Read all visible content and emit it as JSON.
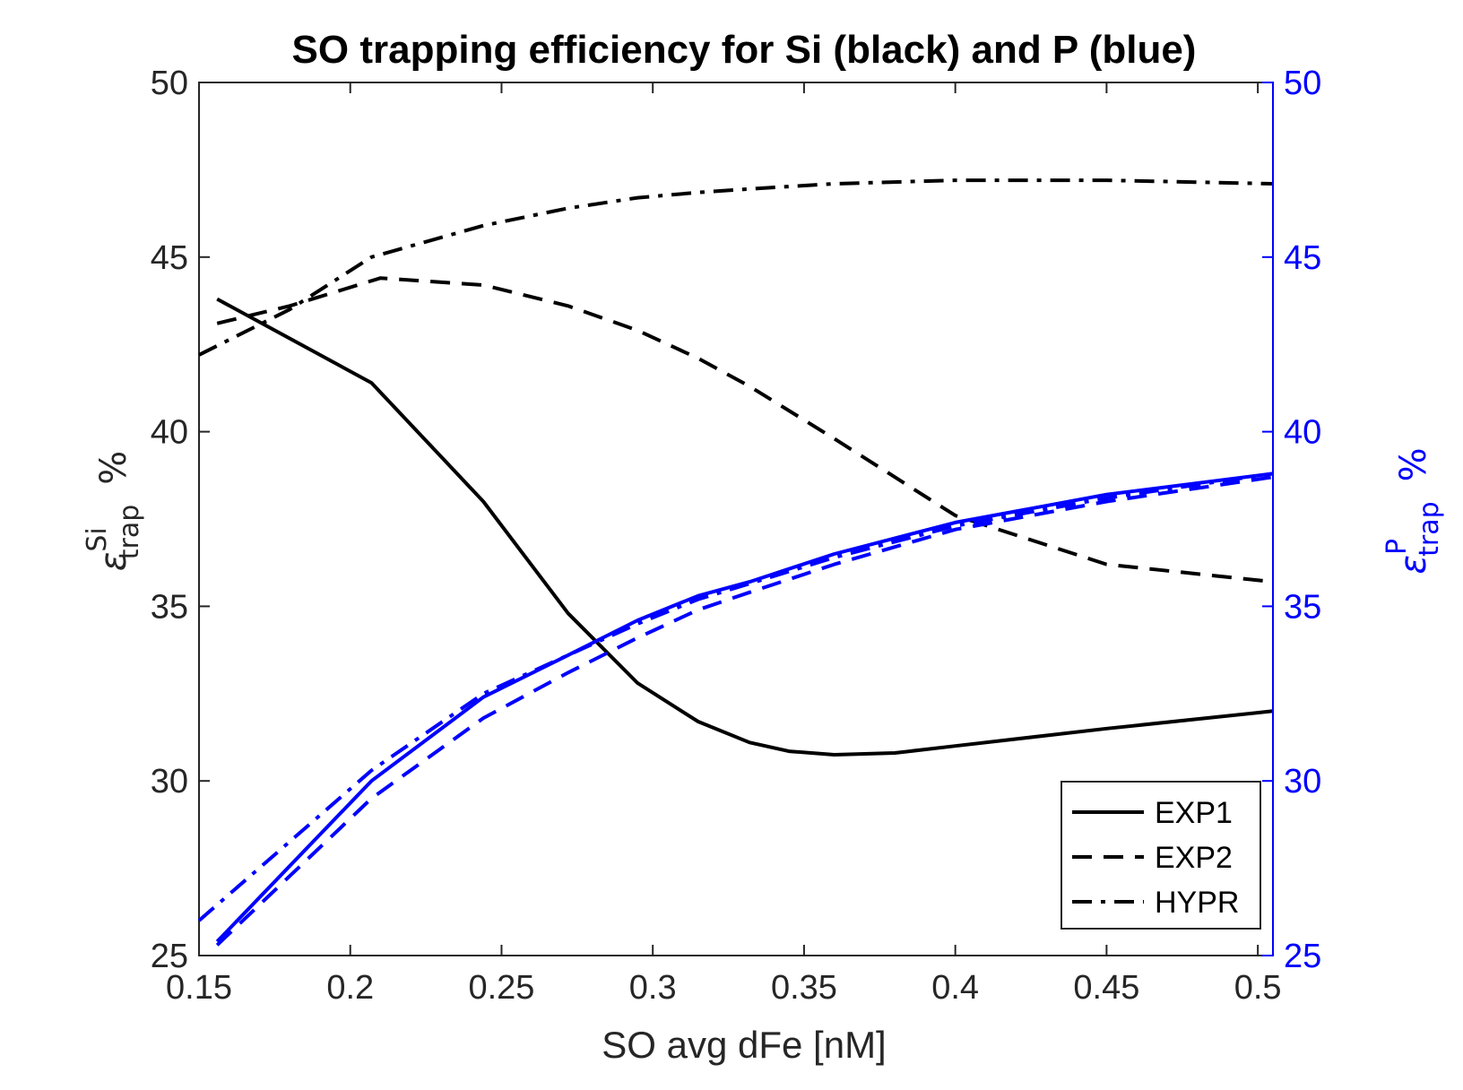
{
  "chart_data": {
    "type": "line",
    "title": "SO trapping efficiency for Si (black) and P (blue)",
    "xlabel": "SO avg dFe [nM]",
    "ylabel_left": {
      "symbol": "ε",
      "sup": "Si",
      "sub": "trap",
      "unit": "%"
    },
    "ylabel_right": {
      "symbol": "ε",
      "sup": "P",
      "sub": "trap",
      "unit": "%"
    },
    "xlim": [
      0.15,
      0.505
    ],
    "ylim_left": [
      25,
      50
    ],
    "ylim_right": [
      25,
      50
    ],
    "xticks": [
      0.15,
      0.2,
      0.25,
      0.3,
      0.35,
      0.4,
      0.45,
      0.5
    ],
    "xtick_labels": [
      "0.15",
      "0.2",
      "0.25",
      "0.3",
      "0.35",
      "0.4",
      "0.45",
      "0.5"
    ],
    "yticks_left": [
      25,
      30,
      35,
      40,
      45,
      50
    ],
    "ytick_labels_left": [
      "25",
      "30",
      "35",
      "40",
      "45",
      "50"
    ],
    "yticks_right": [
      25,
      30,
      35,
      40,
      45,
      50
    ],
    "ytick_labels_right": [
      "25",
      "30",
      "35",
      "40",
      "45",
      "50"
    ],
    "grid": false,
    "legend_position": "bottom-right",
    "legend": [
      {
        "label": "EXP1",
        "style": "solid"
      },
      {
        "label": "EXP2",
        "style": "dashed"
      },
      {
        "label": "HYPR",
        "style": "dashdot"
      }
    ],
    "colors": {
      "Si": "#000000",
      "P": "#0000ff",
      "left_axis": "#262626",
      "right_axis": "#0000ff"
    },
    "series": [
      {
        "group": "Si",
        "style": "solid",
        "axis": "left",
        "x": [
          0.156,
          0.207,
          0.244,
          0.272,
          0.295,
          0.315,
          0.332,
          0.345,
          0.36,
          0.38,
          0.4,
          0.45,
          0.505
        ],
        "y": [
          43.8,
          41.4,
          38.0,
          34.8,
          32.8,
          31.7,
          31.1,
          30.85,
          30.75,
          30.8,
          31.0,
          31.5,
          32.0
        ]
      },
      {
        "group": "Si",
        "style": "dashed",
        "axis": "left",
        "x": [
          0.156,
          0.18,
          0.21,
          0.244,
          0.272,
          0.295,
          0.315,
          0.332,
          0.36,
          0.4,
          0.45,
          0.505
        ],
        "y": [
          43.1,
          43.6,
          44.4,
          44.2,
          43.6,
          42.9,
          42.1,
          41.3,
          39.8,
          37.6,
          36.2,
          35.7
        ]
      },
      {
        "group": "Si",
        "style": "dashdot",
        "axis": "left",
        "x": [
          0.15,
          0.18,
          0.207,
          0.244,
          0.272,
          0.295,
          0.315,
          0.332,
          0.36,
          0.4,
          0.45,
          0.505
        ],
        "y": [
          42.2,
          43.5,
          45.0,
          45.9,
          46.4,
          46.7,
          46.85,
          46.95,
          47.1,
          47.2,
          47.2,
          47.1
        ]
      },
      {
        "group": "P",
        "style": "solid",
        "axis": "right",
        "x": [
          0.156,
          0.207,
          0.244,
          0.272,
          0.295,
          0.315,
          0.332,
          0.36,
          0.4,
          0.45,
          0.505
        ],
        "y": [
          25.4,
          30.0,
          32.4,
          33.6,
          34.6,
          35.3,
          35.7,
          36.5,
          37.4,
          38.2,
          38.8
        ]
      },
      {
        "group": "P",
        "style": "dashed",
        "axis": "right",
        "x": [
          0.156,
          0.207,
          0.244,
          0.272,
          0.295,
          0.315,
          0.332,
          0.36,
          0.4,
          0.45,
          0.505
        ],
        "y": [
          25.3,
          29.5,
          31.8,
          33.1,
          34.1,
          34.9,
          35.4,
          36.2,
          37.2,
          38.0,
          38.7
        ]
      },
      {
        "group": "P",
        "style": "dashdot",
        "axis": "right",
        "x": [
          0.15,
          0.207,
          0.244,
          0.272,
          0.295,
          0.315,
          0.332,
          0.36,
          0.4,
          0.45,
          0.505
        ],
        "y": [
          26.0,
          30.3,
          32.5,
          33.6,
          34.5,
          35.2,
          35.65,
          36.4,
          37.3,
          38.1,
          38.8
        ]
      }
    ]
  }
}
